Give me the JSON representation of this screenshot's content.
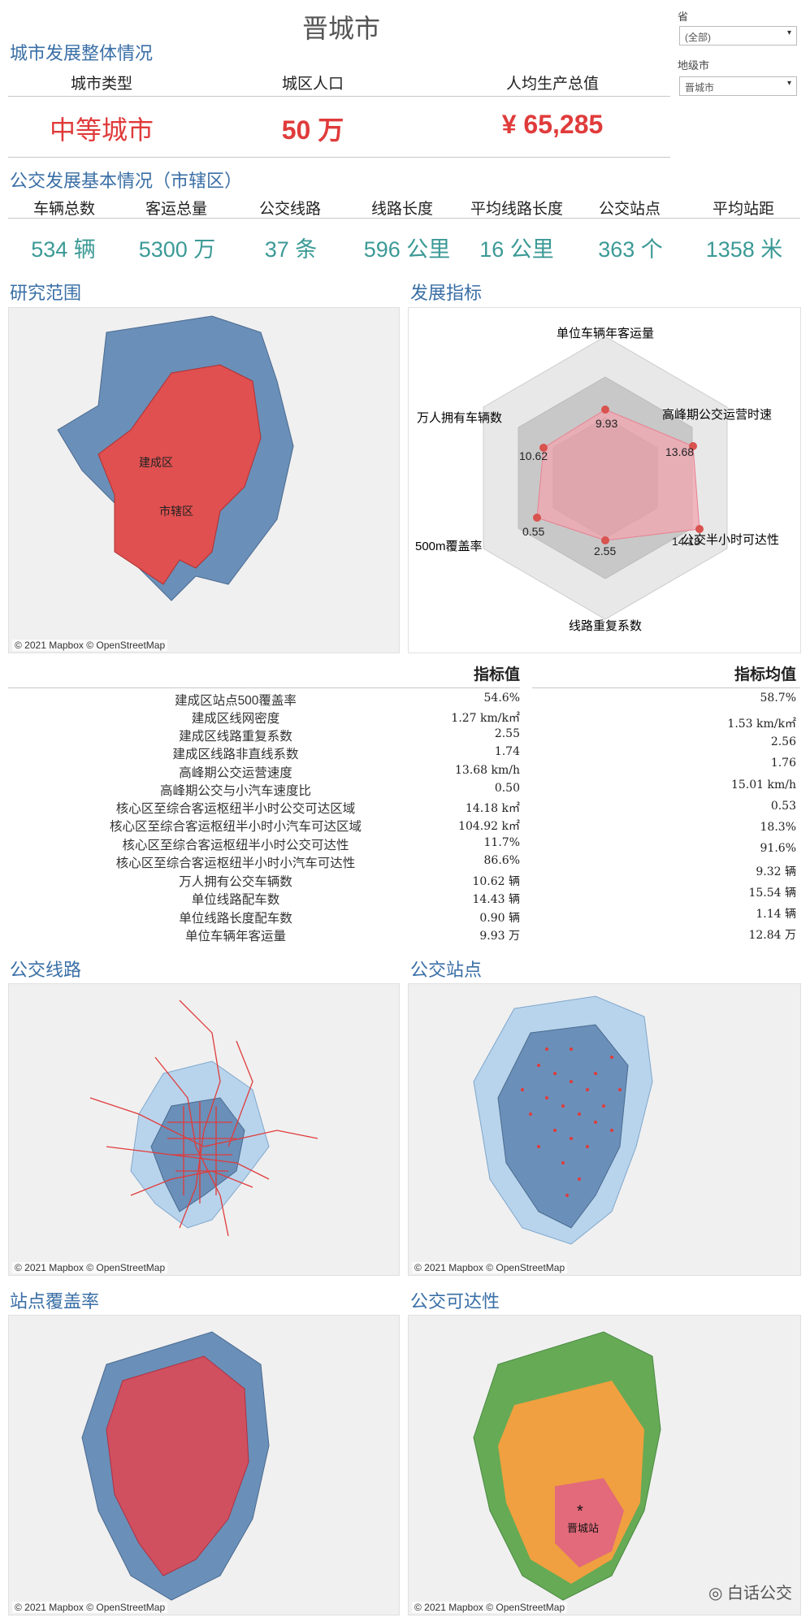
{
  "title": "晋城市",
  "filters": {
    "province_label": "省",
    "province_value": "(全部)",
    "city_label": "地级市",
    "city_value": "晋城市"
  },
  "overview": {
    "section_title": "城市发展整体情况",
    "headers": [
      "城市类型",
      "城区人口",
      "人均生产总值"
    ],
    "values": [
      "中等城市",
      "50 万",
      "¥ 65,285"
    ]
  },
  "transit": {
    "section_title": "公交发展基本情况（市辖区）",
    "items": [
      {
        "label": "车辆总数",
        "value": "534 辆"
      },
      {
        "label": "客运总量",
        "value": "5300 万"
      },
      {
        "label": "公交线路",
        "value": "37 条"
      },
      {
        "label": "线路长度",
        "value": "596 公里"
      },
      {
        "label": "平均线路长度",
        "value": "16 公里"
      },
      {
        "label": "公交站点",
        "value": "363 个"
      },
      {
        "label": "平均站距",
        "value": "1358 米"
      }
    ]
  },
  "study_area": {
    "section_title": "研究范围",
    "label_built": "建成区",
    "label_district": "市辖区",
    "attribution": "© 2021 Mapbox © OpenStreetMap"
  },
  "indicators": {
    "section_title": "发展指标",
    "axes": [
      {
        "label": "单位车辆年客运量",
        "value": "9.93"
      },
      {
        "label": "高峰期公交运营时速",
        "value": "13.68"
      },
      {
        "label": "公交半小时可达性",
        "value": "14.18"
      },
      {
        "label": "线路重复系数",
        "value": "2.55"
      },
      {
        "label": "500m覆盖率",
        "value": "0.55"
      },
      {
        "label": "万人拥有车辆数",
        "value": "10.62"
      }
    ],
    "colors": {
      "fill": "#f2a6b0",
      "point": "#d9534f"
    }
  },
  "table": {
    "col_value": "指标值",
    "col_avg": "指标均值",
    "rows": [
      {
        "label": "建成区站点500覆盖率",
        "value": "54.6%",
        "avg": "58.7%"
      },
      {
        "label": "建成区线网密度",
        "value": "1.27 km/k㎡",
        "avg": "1.53 km/k㎡"
      },
      {
        "label": "建成区线路重复系数",
        "value": "2.55",
        "avg": "2.56"
      },
      {
        "label": "建成区线路非直线系数",
        "value": "1.74",
        "avg": "1.76"
      },
      {
        "label": "高峰期公交运营速度",
        "value": "13.68 km/h",
        "avg": "15.01 km/h"
      },
      {
        "label": "高峰期公交与小汽车速度比",
        "value": "0.50",
        "avg": "0.53"
      },
      {
        "label": "核心区至综合客运枢纽半小时公交可达区域",
        "value": "14.18 k㎡",
        "avg": "18.3%"
      },
      {
        "label": "核心区至综合客运枢纽半小时小汽车可达区域",
        "value": "104.92 k㎡",
        "avg": "91.6%"
      },
      {
        "label": "核心区至综合客运枢纽半小时公交可达性",
        "value": "11.7%",
        "avg": "9.32 辆"
      },
      {
        "label": "核心区至综合客运枢纽半小时小汽车可达性",
        "value": "86.6%",
        "avg": "15.54 辆"
      },
      {
        "label": "万人拥有公交车辆数",
        "value": "10.62 辆",
        "avg": "1.14 辆"
      },
      {
        "label": "单位线路配车数",
        "value": "14.43 辆",
        "avg": "12.84 万"
      },
      {
        "label": "单位线路长度配车数",
        "value": "0.90 辆",
        "avg": ""
      },
      {
        "label": "单位车辆年客运量",
        "value": "9.93 万",
        "avg": ""
      }
    ]
  },
  "maps": {
    "routes_title": "公交线路",
    "stops_title": "公交站点",
    "coverage_title": "站点覆盖率",
    "access_title": "公交可达性",
    "station_label": "晋城站",
    "attribution": "© 2021 Mapbox © OpenStreetMap"
  },
  "watermark": "白话公交",
  "colors": {
    "title_blue": "#3a6fa6",
    "red": "#e03b3b",
    "teal": "#3b9a96",
    "map_blue": "#6a8fb8",
    "map_light": "#b8d4ec",
    "map_red": "#e05050",
    "access_orange": "#f0a040",
    "access_green": "#66aa55",
    "access_pink": "#e26a7a"
  }
}
